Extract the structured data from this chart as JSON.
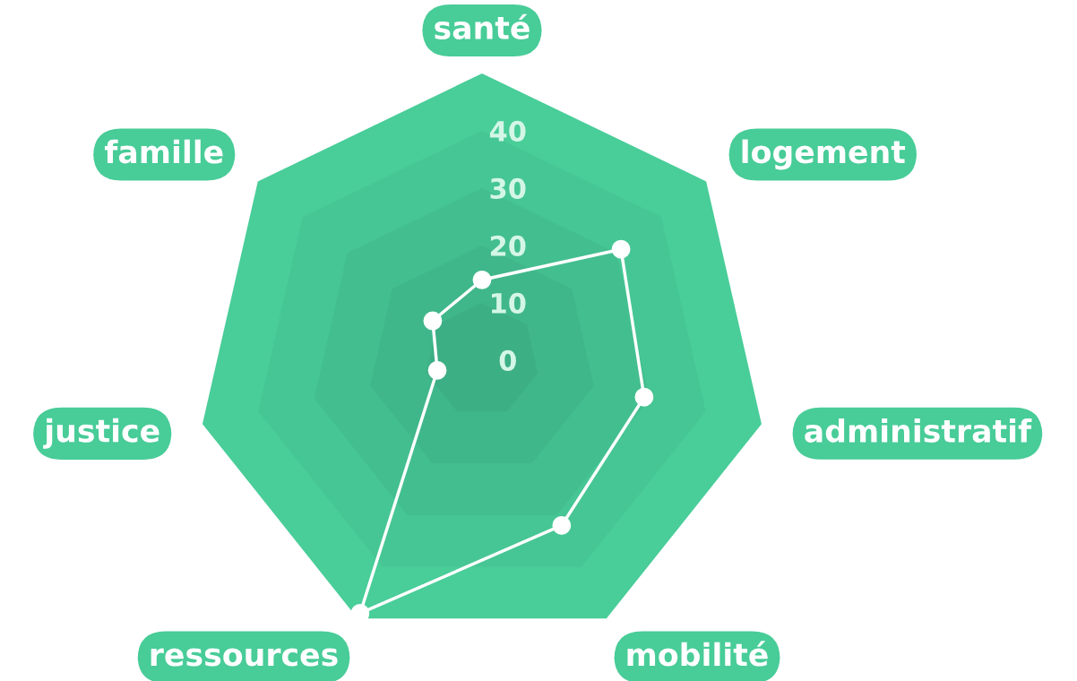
{
  "chart_data": {
    "type": "radar",
    "categories": [
      "santé",
      "logement",
      "administratif",
      "mobilité",
      "ressources",
      "justice",
      "famille"
    ],
    "series": [
      {
        "color": "#ffffff",
        "values": [
          14,
          31,
          29,
          32,
          49,
          8,
          11
        ]
      }
    ],
    "ylim": [
      0,
      50
    ],
    "yticks": [
      0,
      10,
      20,
      30,
      40
    ],
    "grid": true,
    "marker": "circle"
  }
}
